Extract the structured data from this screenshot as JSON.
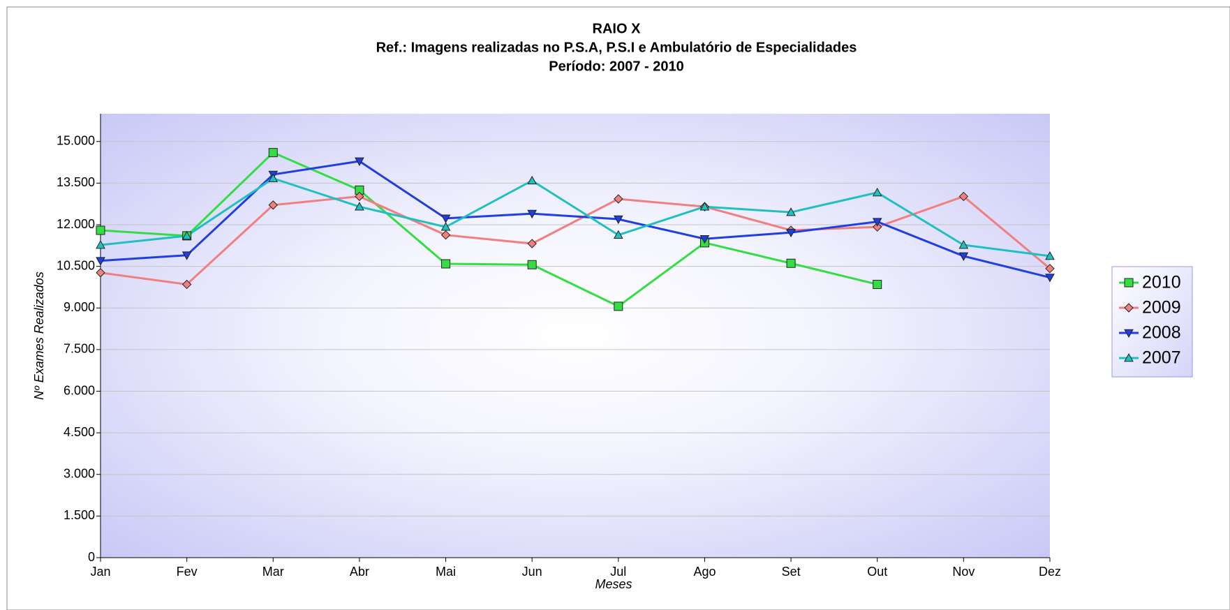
{
  "chart_data": {
    "type": "line",
    "title": "RAIO X",
    "subtitle": [
      "Ref.: Imagens realizadas no P.S.A, P.S.I e Ambulatório de Especialidades",
      "Período: 2007 - 2010"
    ],
    "x_label": "Meses",
    "y_label": "Nº Exames Realizados",
    "categories": [
      "Jan",
      "Fev",
      "Mar",
      "Abr",
      "Mai",
      "Jun",
      "Jul",
      "Ago",
      "Set",
      "Out",
      "Nov",
      "Dez"
    ],
    "series": [
      {
        "name": "2010",
        "color": "#33dd44",
        "marker": "square",
        "values": [
          11800,
          11600,
          14600,
          13250,
          10590,
          10560,
          9060,
          11350,
          10610,
          9850,
          null,
          null
        ]
      },
      {
        "name": "2009",
        "color": "#f08080",
        "marker": "diamond",
        "values": [
          10270,
          9850,
          12710,
          13020,
          11630,
          11320,
          12930,
          12650,
          11800,
          11920,
          13020,
          10420
        ]
      },
      {
        "name": "2008",
        "color": "#1f3fe0",
        "marker": "triangle-down",
        "values": [
          10700,
          10900,
          13810,
          14290,
          12230,
          12400,
          12200,
          11490,
          11720,
          12110,
          10870,
          10100
        ]
      },
      {
        "name": "2007",
        "color": "#20c0c0",
        "marker": "triangle-up",
        "values": [
          11270,
          11600,
          13670,
          12650,
          11920,
          13590,
          11630,
          12650,
          12450,
          13160,
          11270,
          10870
        ]
      }
    ],
    "ylim": [
      0,
      16000
    ],
    "yticks": [
      0,
      {
        "value": 1500,
        "label": "1.500"
      },
      {
        "value": 3000,
        "label": "3.000"
      },
      {
        "value": 4500,
        "label": "4.500"
      },
      {
        "value": 6000,
        "label": "6.000"
      },
      {
        "value": 7500,
        "label": "7.500"
      },
      {
        "value": 9000,
        "label": "9.000"
      },
      {
        "value": 10500,
        "label": "10.500"
      },
      {
        "value": 12000,
        "label": "12.000"
      },
      {
        "value": 13500,
        "label": "13.500"
      },
      {
        "value": 15000,
        "label": "15.000"
      }
    ],
    "grid": true,
    "legend": "right"
  }
}
